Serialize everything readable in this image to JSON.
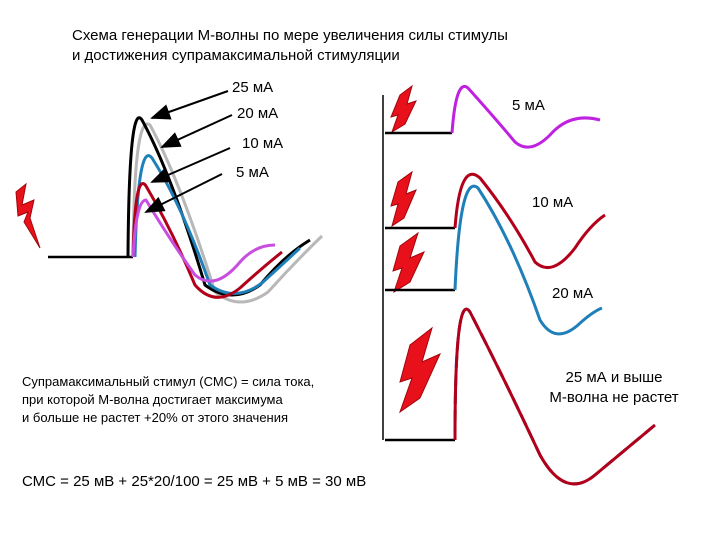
{
  "title": [
    "Схема генерации М-волны по мере увеличения силы стимулы",
    "и достижения супрамаксимальной стимуляции"
  ],
  "left_panel": {
    "labels": [
      "25 мА",
      "20 мА",
      "10 мА",
      "5 мА"
    ]
  },
  "right_panel": {
    "labels": [
      "5 мА",
      "10 мА",
      "20 мА"
    ],
    "conclusion": [
      "25 мА и выше",
      "М-волна не растет"
    ]
  },
  "definition": [
    "Супрамаксимальный стимул (СМС) = сила тока,",
    "при которой М-волна достигает максимума",
    "и больше не растет +20% от этого значения"
  ],
  "formula": "СМС = 25 мВ + 25*20/100 =  25 мВ + 5 мВ = 30 мВ"
}
